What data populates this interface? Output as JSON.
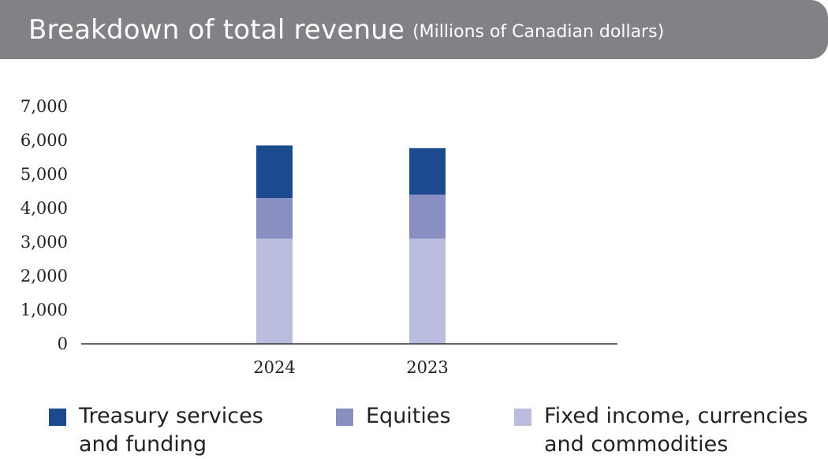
{
  "header": {
    "title": "Breakdown of total revenue",
    "subtitle": "(Millions of Canadian dollars)"
  },
  "colors": {
    "header_bg": "#808285",
    "treasury": "#1b4a8e",
    "equities": "#8a8fc2",
    "fixed_income": "#babddd",
    "axis": "#333333"
  },
  "chart_data": {
    "type": "bar",
    "stacked": true,
    "title": "Breakdown of total revenue",
    "subtitle": "(Millions of Canadian dollars)",
    "xlabel": "",
    "ylabel": "",
    "categories": [
      "2024",
      "2023"
    ],
    "series": [
      {
        "name": "Fixed income, currencies and commodities",
        "values": [
          3100,
          3100
        ]
      },
      {
        "name": "Equities",
        "values": [
          1200,
          1300
        ]
      },
      {
        "name": "Treasury services and funding",
        "values": [
          1550,
          1370
        ]
      }
    ],
    "ylim": [
      0,
      7000
    ],
    "yticks": [
      "0",
      "1,000",
      "2,000",
      "3,000",
      "4,000",
      "5,000",
      "6,000",
      "7,000"
    ],
    "grid": false,
    "legend_position": "bottom"
  },
  "legend": [
    {
      "label_line1": "Treasury services",
      "label_line2": "and funding",
      "icon": "square-swatch"
    },
    {
      "label_line1": "Equities",
      "label_line2": "",
      "icon": "square-swatch"
    },
    {
      "label_line1": "Fixed income, currencies",
      "label_line2": "and commodities",
      "icon": "square-swatch"
    }
  ]
}
